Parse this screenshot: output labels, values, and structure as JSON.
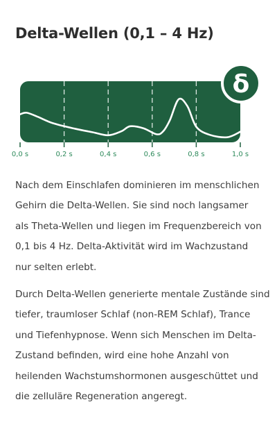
{
  "title": "Delta-Wellen (0,1 – 4 Hz)",
  "badge": {
    "symbol": "δ"
  },
  "axis": {
    "ticks": [
      "0,0 s",
      "0,2 s",
      "0,4 s",
      "0,6 s",
      "0,8 s",
      "1,0 s"
    ]
  },
  "chart_data": {
    "type": "line",
    "title": "",
    "xlabel": "",
    "ylabel": "",
    "x": [
      0.0,
      0.03,
      0.08,
      0.15,
      0.25,
      0.33,
      0.4,
      0.46,
      0.5,
      0.56,
      0.62,
      0.65,
      0.68,
      0.72,
      0.76,
      0.8,
      0.86,
      0.94,
      1.0
    ],
    "y": [
      0.52,
      0.55,
      0.47,
      0.34,
      0.23,
      0.16,
      0.1,
      0.18,
      0.28,
      0.24,
      0.12,
      0.18,
      0.4,
      0.82,
      0.68,
      0.27,
      0.11,
      0.06,
      0.17
    ],
    "xlim": [
      0,
      1.0
    ],
    "ylim": [
      0,
      1
    ],
    "grid": true,
    "colors": {
      "panel": "#1f5f3f",
      "line": "#ffffff",
      "grid": "#ffffff",
      "axis_text": "#2e8a5b"
    }
  },
  "paragraphs": {
    "p1_lines": [
      "Nach dem Einschlafen dominieren im menschlichen",
      "Gehirn die Delta-Wellen. Sie sind noch langsamer",
      "als Theta-Wellen und liegen im Frequenzbereich von",
      "0,1 bis 4 Hz. Delta-Aktivität wird im Wachzustand",
      "nur selten erlebt."
    ],
    "p2_lines": [
      "Durch Delta-Wellen generierte mentale Zustände sind",
      "tiefer, traumloser Schlaf (non-REM Schlaf), Trance",
      "und Tiefenhypnose. Wenn sich Menschen im Delta-",
      "Zustand befinden, wird eine hohe Anzahl von",
      "heilenden Wachstumshormonen ausgeschüttet und",
      "die zelluläre Regeneration angeregt."
    ]
  }
}
